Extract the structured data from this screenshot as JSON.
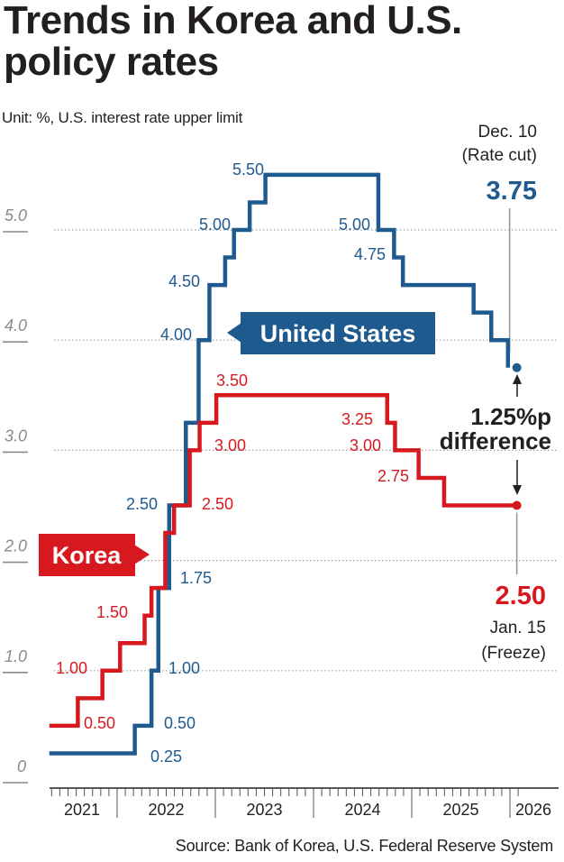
{
  "header": {
    "title_line1": "Trends in Korea and U.S.",
    "title_line2": "policy rates",
    "unit_note": "Unit: %, U.S. interest rate upper limit"
  },
  "footer": {
    "source": "Source: Bank of Korea, U.S. Federal Reserve System"
  },
  "chart_data": {
    "type": "line",
    "step": true,
    "title": "Trends in Korea and U.S. policy rates",
    "xlabel": "",
    "ylabel": "%",
    "ylim": [
      0,
      5.5
    ],
    "xlim": [
      2021.31,
      2026.1
    ],
    "grid": true,
    "y_ticks": [
      {
        "value": 0,
        "label": "0"
      },
      {
        "value": 1,
        "label": "1.0"
      },
      {
        "value": 2,
        "label": "2.0"
      },
      {
        "value": 3,
        "label": "3.0"
      },
      {
        "value": 4,
        "label": "4.0"
      },
      {
        "value": 5,
        "label": "5.0"
      }
    ],
    "gridlines": [
      1,
      2,
      3,
      4,
      5
    ],
    "x_ticks": [
      {
        "year": 2021,
        "label": "2021"
      },
      {
        "year": 2022,
        "label": "2022"
      },
      {
        "year": 2023,
        "label": "2023"
      },
      {
        "year": 2024,
        "label": "2024"
      },
      {
        "year": 2025,
        "label": "2025"
      },
      {
        "year": 2026,
        "label": "2026"
      }
    ],
    "series": [
      {
        "name": "United States",
        "color": "#1f5a8f",
        "points": [
          [
            2021.31,
            0.25
          ],
          [
            2022.18,
            0.5
          ],
          [
            2022.35,
            1.0
          ],
          [
            2022.42,
            1.75
          ],
          [
            2022.53,
            2.5
          ],
          [
            2022.7,
            3.25
          ],
          [
            2022.83,
            4.0
          ],
          [
            2022.94,
            4.5
          ],
          [
            2023.1,
            4.75
          ],
          [
            2023.19,
            5.0
          ],
          [
            2023.35,
            5.25
          ],
          [
            2023.51,
            5.5
          ],
          [
            2024.66,
            5.0
          ],
          [
            2024.82,
            4.75
          ],
          [
            2024.91,
            4.5
          ],
          [
            2025.63,
            4.25
          ],
          [
            2025.81,
            4.0
          ],
          [
            2025.98,
            3.75
          ]
        ],
        "end_x": 2026.07,
        "labels": [
          {
            "x": 2022.18,
            "y": 0.25,
            "text": "0.25"
          },
          {
            "x": 2022.35,
            "y": 0.5,
            "text": "0.50"
          },
          {
            "x": 2022.42,
            "y": 1.0,
            "text": "1.00"
          },
          {
            "x": 2022.53,
            "y": 1.75,
            "text": "1.75"
          },
          {
            "x": 2022.53,
            "y": 2.5,
            "text": "2.50"
          },
          {
            "x": 2022.83,
            "y": 4.0,
            "text": "4.00"
          },
          {
            "x": 2022.94,
            "y": 4.5,
            "text": "4.50"
          },
          {
            "x": 2023.19,
            "y": 5.0,
            "text": "5.00"
          },
          {
            "x": 2023.51,
            "y": 5.5,
            "text": "5.50"
          },
          {
            "x": 2024.66,
            "y": 5.0,
            "text": "5.00"
          },
          {
            "x": 2024.82,
            "y": 4.75,
            "text": "4.75"
          }
        ]
      },
      {
        "name": "Korea",
        "color": "#d7191f",
        "points": [
          [
            2021.31,
            0.5
          ],
          [
            2021.6,
            0.75
          ],
          [
            2021.85,
            1.0
          ],
          [
            2022.03,
            1.25
          ],
          [
            2022.28,
            1.5
          ],
          [
            2022.35,
            1.75
          ],
          [
            2022.49,
            2.25
          ],
          [
            2022.58,
            2.5
          ],
          [
            2022.74,
            3.0
          ],
          [
            2022.84,
            3.25
          ],
          [
            2023.01,
            3.5
          ],
          [
            2024.75,
            3.25
          ],
          [
            2024.83,
            3.0
          ],
          [
            2025.07,
            2.75
          ],
          [
            2025.33,
            2.5
          ]
        ],
        "end_x": 2026.07,
        "labels": [
          {
            "x": 2021.6,
            "y": 0.5,
            "text": "0.50"
          },
          {
            "x": 2021.85,
            "y": 1.0,
            "text": "1.00"
          },
          {
            "x": 2022.28,
            "y": 1.5,
            "text": "1.50"
          },
          {
            "x": 2022.58,
            "y": 2.5,
            "text": "2.50"
          },
          {
            "x": 2022.74,
            "y": 3.0,
            "text": "3.00"
          },
          {
            "x": 2023.01,
            "y": 3.5,
            "text": "3.50"
          },
          {
            "x": 2024.75,
            "y": 3.25,
            "text": "3.25"
          },
          {
            "x": 2024.83,
            "y": 3.0,
            "text": "3.00"
          },
          {
            "x": 2025.07,
            "y": 2.75,
            "text": "2.75"
          }
        ]
      }
    ],
    "legend": {
      "united_states": "United States",
      "korea": "Korea"
    },
    "annotations": {
      "us_latest": {
        "date": "Dec. 10",
        "note": "(Rate cut)",
        "value": "3.75"
      },
      "korea_latest": {
        "date": "Jan. 15",
        "note": "(Freeze)",
        "value": "2.50"
      },
      "difference_line1": "1.25%p",
      "difference_line2": "difference"
    }
  }
}
